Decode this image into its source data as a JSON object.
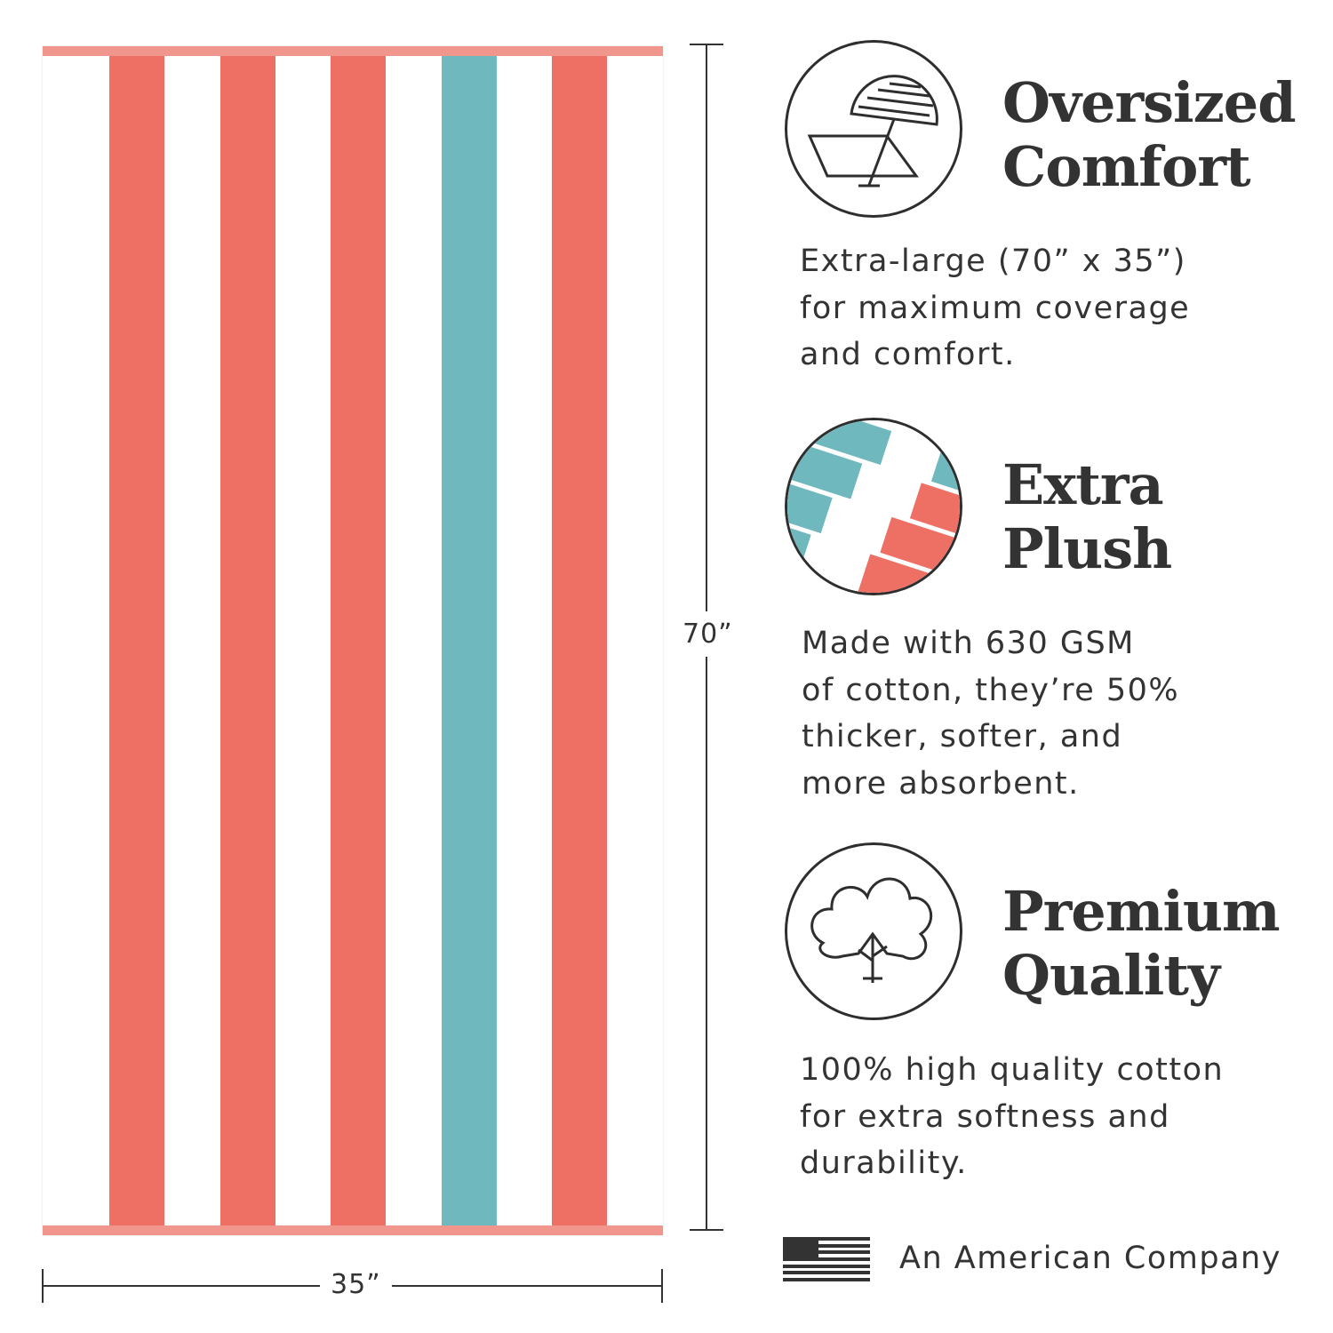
{
  "colors": {
    "coral": "#ee6f64",
    "teal": "#6fb8bd",
    "hem": "#f1968c",
    "text": "#2e2e2e"
  },
  "towel": {
    "stripes": [
      "white",
      "coral",
      "white",
      "coral",
      "white",
      "coral",
      "white",
      "teal",
      "white",
      "coral",
      "white"
    ]
  },
  "dimensions": {
    "height_label": "70”",
    "width_label": "35”"
  },
  "features": [
    {
      "icon": "beach-umbrella-icon",
      "title_line1": "Oversized",
      "title_line2": "Comfort",
      "body": "Extra-large (70” x 35”)\nfor maximum coverage\nand comfort."
    },
    {
      "icon": "folded-towel-photo",
      "title_line1": "Extra",
      "title_line2": "Plush",
      "body": "Made with 630 GSM\nof cotton, they’re 50%\nthicker, softer, and\nmore absorbent."
    },
    {
      "icon": "cotton-flower-icon",
      "title_line1": "Premium",
      "title_line2": "Quality",
      "body": "100% high quality cotton\nfor extra softness and\ndurability."
    }
  ],
  "footer": {
    "flag_icon": "us-flag-icon",
    "text": "An American Company"
  }
}
